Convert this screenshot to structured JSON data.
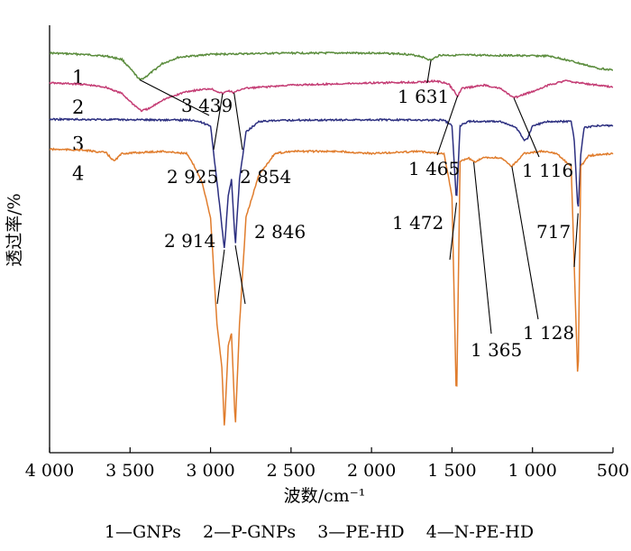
{
  "chart_data": {
    "type": "line",
    "title": "",
    "xlabel": "波数/cm⁻¹",
    "ylabel": "透过率/%",
    "xlim": [
      4000,
      500
    ],
    "x_reversed": true,
    "x_ticks": [
      4000,
      3500,
      3000,
      2500,
      2000,
      1500,
      1000,
      500
    ],
    "x_tick_labels": [
      "4 000",
      "3 500",
      "3 000",
      "2 500",
      "2 000",
      "1 500",
      "1 000",
      "500"
    ],
    "y_tick_labels": false,
    "grid": false,
    "legend_caption": "1—GNPs    2—P-GNPs    3—PE-HD    4—N-PE-HD",
    "series": [
      {
        "name": "GNPs",
        "number_label": "1",
        "color": "#5a8c3c",
        "baseline": 0.065,
        "points": [
          [
            4000,
            0.065
          ],
          [
            3800,
            0.068
          ],
          [
            3650,
            0.072
          ],
          [
            3550,
            0.08
          ],
          [
            3480,
            0.11
          ],
          [
            3439,
            0.128
          ],
          [
            3400,
            0.12
          ],
          [
            3300,
            0.09
          ],
          [
            3200,
            0.075
          ],
          [
            3000,
            0.068
          ],
          [
            2500,
            0.065
          ],
          [
            2000,
            0.065
          ],
          [
            1800,
            0.067
          ],
          [
            1700,
            0.072
          ],
          [
            1631,
            0.082
          ],
          [
            1580,
            0.07
          ],
          [
            1400,
            0.07
          ],
          [
            1100,
            0.071
          ],
          [
            900,
            0.072
          ],
          [
            800,
            0.08
          ],
          [
            700,
            0.09
          ],
          [
            600,
            0.1
          ],
          [
            500,
            0.105
          ]
        ],
        "annotations": [
          {
            "x": 3439,
            "label": "3 439"
          },
          {
            "x": 1631,
            "label": "1 631"
          }
        ]
      },
      {
        "name": "P-GNPs",
        "number_label": "2",
        "color": "#c43c74",
        "baseline": 0.135,
        "points": [
          [
            4000,
            0.135
          ],
          [
            3800,
            0.138
          ],
          [
            3650,
            0.145
          ],
          [
            3550,
            0.16
          ],
          [
            3480,
            0.185
          ],
          [
            3430,
            0.2
          ],
          [
            3380,
            0.195
          ],
          [
            3300,
            0.175
          ],
          [
            3150,
            0.155
          ],
          [
            3000,
            0.148
          ],
          [
            2925,
            0.16
          ],
          [
            2890,
            0.153
          ],
          [
            2854,
            0.158
          ],
          [
            2800,
            0.148
          ],
          [
            2500,
            0.14
          ],
          [
            2000,
            0.135
          ],
          [
            1700,
            0.133
          ],
          [
            1600,
            0.13
          ],
          [
            1520,
            0.138
          ],
          [
            1465,
            0.165
          ],
          [
            1440,
            0.148
          ],
          [
            1300,
            0.14
          ],
          [
            1200,
            0.148
          ],
          [
            1116,
            0.17
          ],
          [
            1000,
            0.155
          ],
          [
            900,
            0.14
          ],
          [
            800,
            0.13
          ],
          [
            700,
            0.135
          ],
          [
            600,
            0.14
          ],
          [
            500,
            0.145
          ]
        ],
        "annotations": [
          {
            "x": 2925,
            "label": "2 925"
          },
          {
            "x": 2854,
            "label": "2 854"
          },
          {
            "x": 1465,
            "label": "1 465"
          },
          {
            "x": 1116,
            "label": "1 116"
          }
        ]
      },
      {
        "name": "PE-HD",
        "number_label": "3",
        "color": "#2c2f80",
        "baseline": 0.22,
        "points": [
          [
            4000,
            0.22
          ],
          [
            3500,
            0.221
          ],
          [
            3100,
            0.222
          ],
          [
            3000,
            0.235
          ],
          [
            2950,
            0.4
          ],
          [
            2914,
            0.525
          ],
          [
            2890,
            0.4
          ],
          [
            2870,
            0.36
          ],
          [
            2846,
            0.515
          ],
          [
            2820,
            0.36
          ],
          [
            2780,
            0.25
          ],
          [
            2700,
            0.225
          ],
          [
            2500,
            0.222
          ],
          [
            2000,
            0.221
          ],
          [
            1550,
            0.222
          ],
          [
            1500,
            0.235
          ],
          [
            1472,
            0.415
          ],
          [
            1450,
            0.235
          ],
          [
            1400,
            0.225
          ],
          [
            1200,
            0.225
          ],
          [
            1100,
            0.24
          ],
          [
            1050,
            0.27
          ],
          [
            1030,
            0.265
          ],
          [
            1000,
            0.235
          ],
          [
            900,
            0.225
          ],
          [
            760,
            0.225
          ],
          [
            740,
            0.27
          ],
          [
            717,
            0.44
          ],
          [
            700,
            0.3
          ],
          [
            680,
            0.24
          ],
          [
            600,
            0.235
          ],
          [
            500,
            0.235
          ]
        ],
        "annotations": [
          {
            "x": 2914,
            "label": "2 914"
          },
          {
            "x": 2846,
            "label": "2 846"
          },
          {
            "x": 1472,
            "label": "1 472"
          },
          {
            "x": 717,
            "label": "717"
          }
        ]
      },
      {
        "name": "N-PE-HD",
        "number_label": "4",
        "color": "#e07c2c",
        "baseline": 0.29,
        "points": [
          [
            4000,
            0.29
          ],
          [
            3800,
            0.292
          ],
          [
            3650,
            0.298
          ],
          [
            3600,
            0.318
          ],
          [
            3550,
            0.3
          ],
          [
            3300,
            0.295
          ],
          [
            3150,
            0.3
          ],
          [
            3100,
            0.33
          ],
          [
            3050,
            0.37
          ],
          [
            3000,
            0.45
          ],
          [
            2960,
            0.7
          ],
          [
            2930,
            0.8
          ],
          [
            2914,
            0.945
          ],
          [
            2890,
            0.75
          ],
          [
            2870,
            0.72
          ],
          [
            2846,
            0.94
          ],
          [
            2820,
            0.7
          ],
          [
            2780,
            0.45
          ],
          [
            2700,
            0.35
          ],
          [
            2600,
            0.3
          ],
          [
            2500,
            0.295
          ],
          [
            2200,
            0.295
          ],
          [
            2000,
            0.3
          ],
          [
            1700,
            0.295
          ],
          [
            1550,
            0.3
          ],
          [
            1500,
            0.4
          ],
          [
            1472,
            0.895
          ],
          [
            1450,
            0.32
          ],
          [
            1400,
            0.31
          ],
          [
            1365,
            0.32
          ],
          [
            1300,
            0.31
          ],
          [
            1200,
            0.31
          ],
          [
            1128,
            0.33
          ],
          [
            1050,
            0.3
          ],
          [
            950,
            0.295
          ],
          [
            850,
            0.3
          ],
          [
            760,
            0.33
          ],
          [
            717,
            0.845
          ],
          [
            700,
            0.33
          ],
          [
            650,
            0.305
          ],
          [
            500,
            0.3
          ]
        ],
        "annotations": [
          {
            "x": 1365,
            "label": "1 365"
          },
          {
            "x": 1128,
            "label": "1 128"
          }
        ]
      }
    ]
  }
}
